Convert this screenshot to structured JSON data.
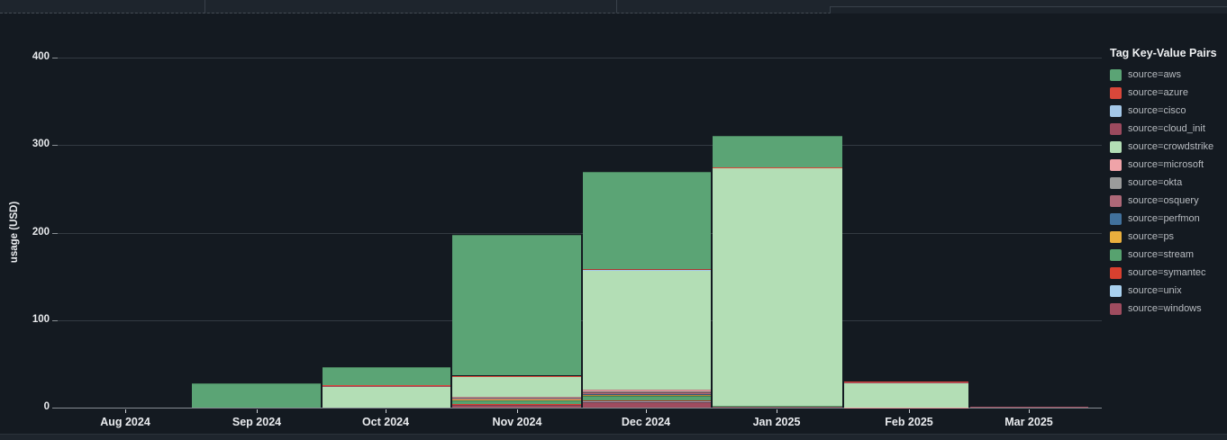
{
  "legend": {
    "title": "Tag Key-Value Pairs"
  },
  "chart_data": {
    "type": "bar",
    "stacked": true,
    "title": "",
    "xlabel": "",
    "ylabel": "usage (USD)",
    "ylim": [
      0,
      400
    ],
    "y_ticks": [
      0,
      100,
      200,
      300,
      400
    ],
    "grid": "horizontal",
    "legend_position": "right",
    "categories": [
      "Aug 2024",
      "Sep 2024",
      "Oct 2024",
      "Nov 2024",
      "Dec 2024",
      "Jan 2025",
      "Feb 2025",
      "Mar 2025"
    ],
    "series": [
      {
        "name": "source=aws",
        "color": "#5ba475",
        "values": [
          0,
          28,
          20.5,
          161,
          111,
          36,
          0,
          0
        ]
      },
      {
        "name": "source=azure",
        "color": "#d9473a",
        "values": [
          0,
          0,
          0.15,
          0.2,
          0.2,
          0.15,
          0.4,
          0
        ]
      },
      {
        "name": "source=cisco",
        "color": "#a4c8e8",
        "values": [
          0,
          0,
          0.15,
          0.2,
          0.15,
          0.15,
          0.3,
          0
        ]
      },
      {
        "name": "source=cloud_init",
        "color": "#9c4a5e",
        "values": [
          0,
          0,
          0.15,
          0.2,
          0.15,
          0.15,
          0.4,
          0.2
        ]
      },
      {
        "name": "source=crowdstrike",
        "color": "#b3deb5",
        "values": [
          0,
          0,
          25,
          23.5,
          137,
          272,
          28.6,
          0
        ]
      },
      {
        "name": "source=microsoft",
        "color": "#efa3a8",
        "values": [
          0,
          0,
          0,
          1.4,
          2.4,
          0,
          0.3,
          0
        ]
      },
      {
        "name": "source=okta",
        "color": "#9b9b9b",
        "values": [
          0,
          0,
          0,
          0.3,
          1.0,
          0,
          0,
          0
        ]
      },
      {
        "name": "source=osquery",
        "color": "#ad6878",
        "values": [
          0,
          0,
          0,
          0.3,
          1.7,
          0,
          0,
          0
        ]
      },
      {
        "name": "source=perfmon",
        "color": "#41719c",
        "values": [
          0,
          0,
          0,
          0.3,
          0.7,
          0,
          0,
          0
        ]
      },
      {
        "name": "source=ps",
        "color": "#eaaf3d",
        "values": [
          0,
          0,
          0,
          1.8,
          1.0,
          0,
          0,
          0
        ]
      },
      {
        "name": "source=stream",
        "color": "#57a26f",
        "values": [
          0,
          0,
          0,
          4.1,
          5.1,
          0.3,
          0,
          0
        ]
      },
      {
        "name": "source=symantec",
        "color": "#d8402f",
        "values": [
          0,
          0,
          0,
          0.4,
          1.0,
          0.3,
          0,
          0.3
        ]
      },
      {
        "name": "source=unix",
        "color": "#a9d1ef",
        "values": [
          0,
          0,
          0,
          0.4,
          1.0,
          0,
          0,
          0
        ]
      },
      {
        "name": "source=windows",
        "color": "#9f4c5f",
        "values": [
          0,
          0,
          0,
          3.4,
          6.5,
          1.5,
          0,
          1.0
        ]
      }
    ]
  }
}
